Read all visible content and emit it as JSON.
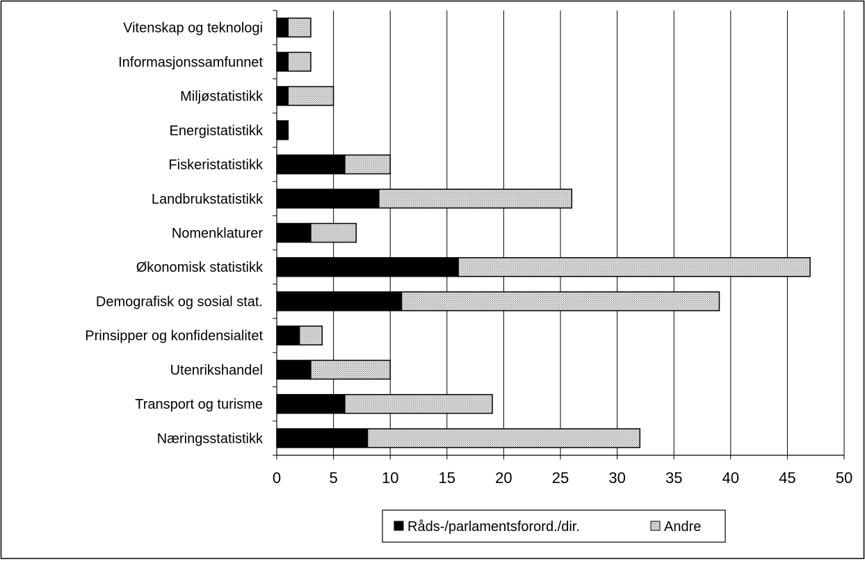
{
  "chart_data": {
    "type": "bar",
    "orientation": "horizontal",
    "stacked": true,
    "categories": [
      "Vitenskap og teknologi",
      "Informasjonssamfunnet",
      "Miljøstatistikk",
      "Energistatistikk",
      "Fiskeristatistikk",
      "Landbrukstatistikk",
      "Nomenklaturer",
      "Økonomisk statistikk",
      "Demografisk og sosial stat.",
      "Prinsipper og konfidensialitet",
      "Utenrikshandel",
      "Transport og turisme",
      "Næringsstatistikk"
    ],
    "series": [
      {
        "name": "Råds-/parlamentsforord./dir.",
        "color": "#000000",
        "pattern": "solid",
        "values": [
          1,
          1,
          1,
          1,
          6,
          9,
          3,
          16,
          11,
          2,
          3,
          6,
          8
        ]
      },
      {
        "name": "Andre",
        "color": "#c8c8c8",
        "pattern": "dotted",
        "values": [
          2,
          2,
          4,
          0,
          4,
          17,
          4,
          31,
          28,
          2,
          7,
          13,
          24
        ]
      }
    ],
    "xlim": [
      0,
      50
    ],
    "xticks": [
      0,
      5,
      10,
      15,
      20,
      25,
      30,
      35,
      40,
      45,
      50
    ],
    "grid": "vertical",
    "legend_position": "bottom",
    "title": "",
    "xlabel": "",
    "ylabel": ""
  }
}
